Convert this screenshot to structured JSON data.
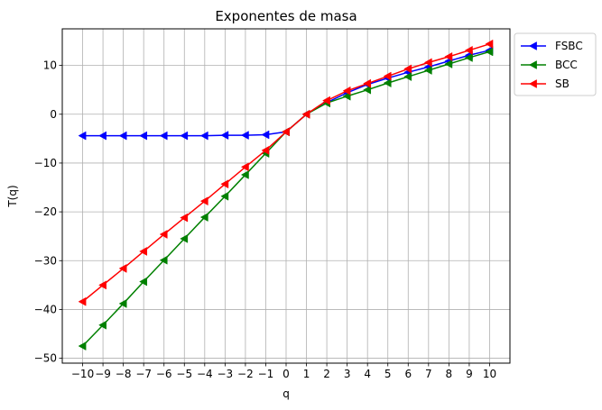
{
  "chart_data": {
    "type": "line",
    "title": "Exponentes de masa",
    "xlabel": "q",
    "ylabel": "T(q)",
    "xlim": [
      -11,
      11
    ],
    "ylim": [
      -51,
      17.5
    ],
    "grid": true,
    "legend_position": "outside-top-right",
    "x": [
      -10,
      -9,
      -8,
      -7,
      -6,
      -5,
      -4,
      -3,
      -2,
      -1,
      0,
      1,
      2,
      3,
      4,
      5,
      6,
      7,
      8,
      9,
      10
    ],
    "x_ticks": [
      "−10",
      "−9",
      "−8",
      "−7",
      "−6",
      "−5",
      "−4",
      "−3",
      "−2",
      "−1",
      "0",
      "1",
      "2",
      "3",
      "4",
      "5",
      "6",
      "7",
      "8",
      "9",
      "10"
    ],
    "y_tick_values": [
      -50,
      -40,
      -30,
      -20,
      -10,
      0,
      10
    ],
    "y_ticks": [
      "−50",
      "−40",
      "−30",
      "−20",
      "−10",
      "0",
      "10"
    ],
    "series": [
      {
        "name": "FSBC",
        "color": "#0000ff",
        "marker": "triangle-left",
        "values": [
          -4.4,
          -4.4,
          -4.4,
          -4.4,
          -4.4,
          -4.4,
          -4.4,
          -4.3,
          -4.3,
          -4.2,
          -3.6,
          0,
          2.4,
          4.4,
          6.1,
          7.4,
          8.6,
          9.7,
          10.9,
          12.1,
          13.1
        ]
      },
      {
        "name": "BCC",
        "color": "#008000",
        "marker": "triangle-left",
        "values": [
          -47.5,
          -43.2,
          -38.8,
          -34.3,
          -29.9,
          -25.5,
          -21.1,
          -16.8,
          -12.4,
          -8.0,
          -3.6,
          0,
          2.3,
          3.7,
          5.0,
          6.4,
          7.7,
          9.0,
          10.3,
          11.6,
          12.8
        ]
      },
      {
        "name": "SB",
        "color": "#ff0000",
        "marker": "triangle-left",
        "values": [
          -38.4,
          -35.0,
          -31.6,
          -28.1,
          -24.6,
          -21.2,
          -17.8,
          -14.3,
          -10.8,
          -7.4,
          -3.6,
          0,
          2.8,
          4.8,
          6.3,
          7.8,
          9.3,
          10.6,
          11.8,
          13.1,
          14.4
        ]
      }
    ]
  }
}
